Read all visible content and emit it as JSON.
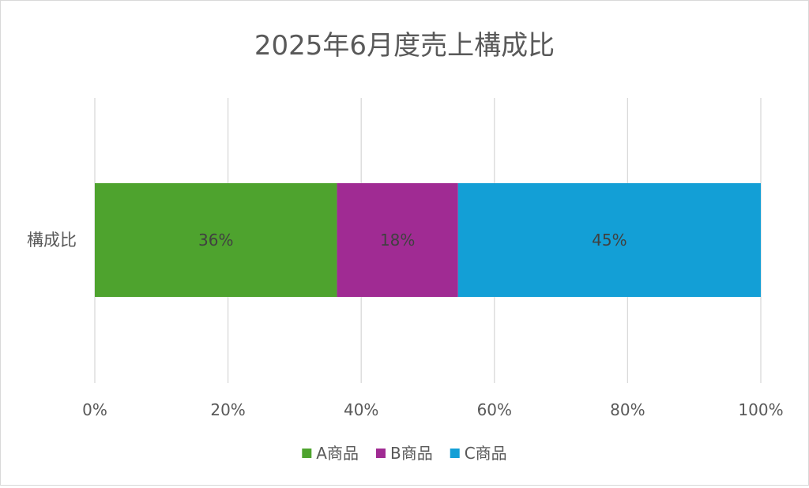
{
  "chart_data": {
    "type": "bar",
    "orientation": "horizontal",
    "stacked": "percent",
    "title": "2025年6月度売上構成比",
    "categories": [
      "構成比"
    ],
    "series": [
      {
        "name": "A商品",
        "values": [
          36
        ],
        "label": "36%",
        "color": "#4ea32e"
      },
      {
        "name": "B商品",
        "values": [
          18
        ],
        "label": "18%",
        "color": "#a02b93"
      },
      {
        "name": "C商品",
        "values": [
          45
        ],
        "label": "45%",
        "color": "#139fd6"
      }
    ],
    "x_ticks": [
      "0%",
      "20%",
      "40%",
      "60%",
      "80%",
      "100%"
    ],
    "x_tick_values": [
      0,
      20,
      40,
      60,
      80,
      100
    ],
    "xlim": [
      0,
      100
    ],
    "grid": "vertical",
    "legend_position": "bottom",
    "colors": {
      "gridline": "#d9d9d9",
      "title_text": "#595959",
      "axis_text": "#595959",
      "data_label_text": "#404040",
      "border": "#d9d9d9"
    }
  }
}
